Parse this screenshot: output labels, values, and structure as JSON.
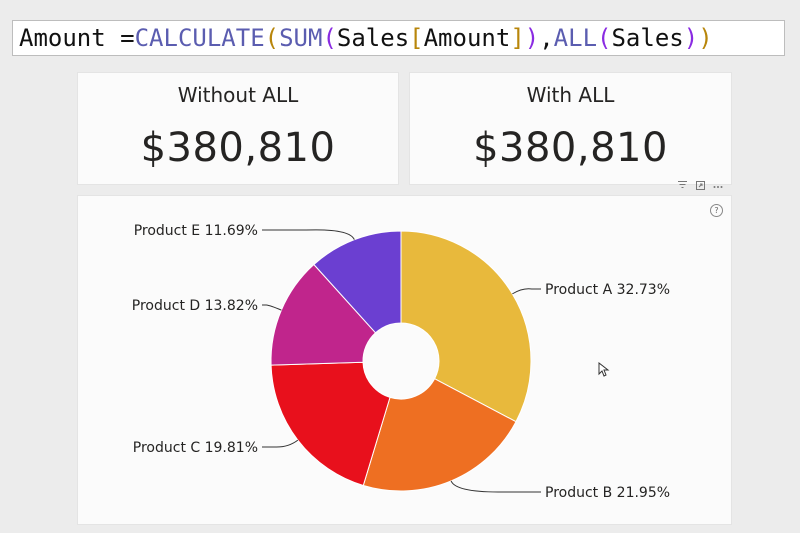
{
  "formula": {
    "t1": "Amount = ",
    "t2": "CALCULATE",
    "t3": "(",
    "t4": "SUM",
    "t5": "(",
    "t6": "Sales",
    "t7": "[",
    "t8": "Amount",
    "t9": "]",
    "t10": ")",
    "t11": ", ",
    "t12": "ALL",
    "t13": "(",
    "t14": "Sales",
    "t15": ")",
    "t16": ")"
  },
  "cards": [
    {
      "title": "Without ALL",
      "value": "$380,810"
    },
    {
      "title": "With ALL",
      "value": "$380,810"
    }
  ],
  "visual_header_icons": [
    "filter-icon",
    "focus-mode-icon",
    "more-options-icon"
  ],
  "help_icon_glyph": "?",
  "chart_data": {
    "type": "pie",
    "donut": true,
    "categories": [
      "Product A",
      "Product B",
      "Product C",
      "Product D",
      "Product E"
    ],
    "values": [
      32.73,
      21.95,
      19.81,
      13.82,
      11.69
    ],
    "labels": [
      "Product A 32.73%",
      "Product B 21.95%",
      "Product C 19.81%",
      "Product D 13.82%",
      "Product E 11.69%"
    ],
    "colors": [
      "#e8b93c",
      "#ee6f22",
      "#e8101c",
      "#c0258c",
      "#6b3fd1"
    ],
    "title": ""
  }
}
